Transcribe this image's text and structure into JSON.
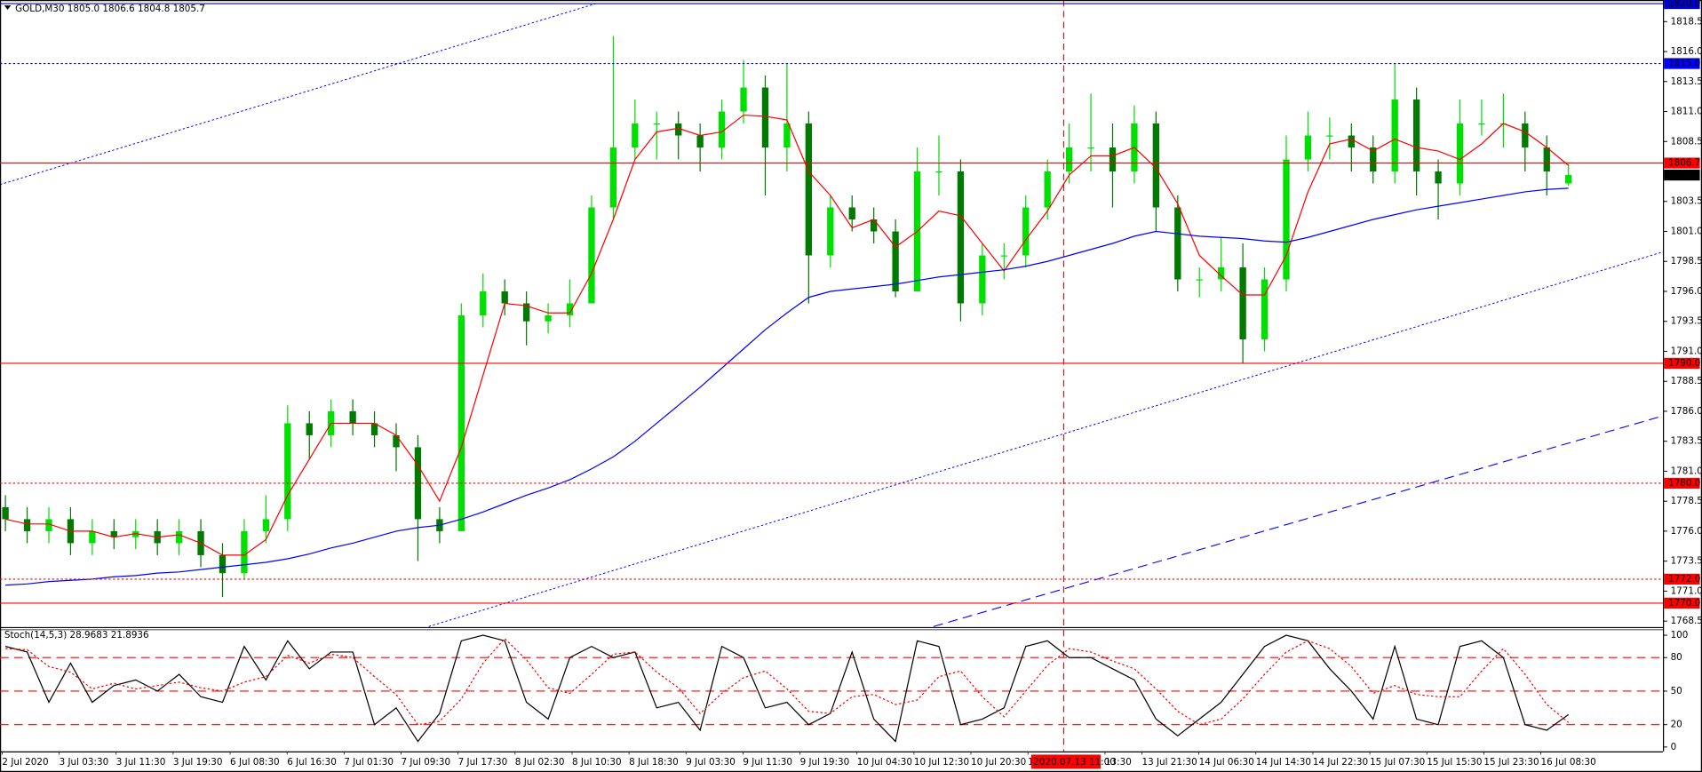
{
  "chart_data": [
    {
      "type": "candlestick",
      "title": "GOLD,M30  1805.0 1806.6 1804.8 1805.7",
      "up_color": "#00e000",
      "down_color": "#007a00",
      "open": [
        1778,
        1777,
        1776,
        1777,
        1775,
        1776,
        1775.5,
        1776,
        1775,
        1776,
        1774,
        1772.5,
        1776,
        1777,
        1785,
        1784,
        1786,
        1785,
        1784,
        1783,
        1777,
        1776,
        1794,
        1796,
        1795,
        1793.5,
        1794,
        1795,
        1803,
        1808,
        1810,
        1810,
        1809,
        1808,
        1811,
        1813,
        1808,
        1810,
        1799,
        1803,
        1802,
        1801,
        1796,
        1806,
        1806,
        1795,
        1799,
        1799,
        1803,
        1806,
        1808,
        1808,
        1806,
        1810,
        1803,
        1797,
        1797,
        1798,
        1792,
        1797,
        1807,
        1809,
        1809,
        1808,
        1806,
        1812,
        1806,
        1805,
        1810,
        1810,
        1810,
        1808,
        1805
      ],
      "high": [
        1779,
        1778,
        1778,
        1778,
        1777,
        1777,
        1777,
        1777,
        1777,
        1777,
        1775,
        1777,
        1779,
        1786.5,
        1786,
        1787,
        1787,
        1786,
        1785,
        1784,
        1778,
        1795,
        1797.5,
        1797,
        1796,
        1795,
        1797,
        1804,
        1817.3,
        1812,
        1811,
        1811,
        1810,
        1812,
        1815.3,
        1814,
        1815,
        1811,
        1804,
        1804,
        1803,
        1802,
        1808,
        1809,
        1807,
        1800,
        1800,
        1804,
        1807,
        1810,
        1812.5,
        1810,
        1811.5,
        1811,
        1804,
        1798,
        1800.5,
        1800,
        1798,
        1809,
        1811,
        1810.5,
        1810,
        1809,
        1815,
        1813,
        1807,
        1812,
        1812,
        1812.5,
        1811,
        1809,
        1806.6
      ],
      "low": [
        1776,
        1775,
        1775,
        1774,
        1774,
        1774.5,
        1774.5,
        1774,
        1774,
        1773,
        1770.5,
        1772,
        1775,
        1776,
        1782,
        1783,
        1784,
        1783,
        1781,
        1773.5,
        1775,
        1776,
        1793,
        1794,
        1791.5,
        1792.5,
        1793,
        1795,
        1802,
        1807,
        1807,
        1807,
        1806,
        1807,
        1810,
        1804,
        1806,
        1795,
        1798,
        1801,
        1800,
        1795.5,
        1796,
        1804,
        1793.5,
        1794,
        1797,
        1798,
        1802,
        1805,
        1806,
        1803,
        1805,
        1801,
        1796,
        1795.5,
        1796,
        1790,
        1791,
        1796,
        1806,
        1807,
        1806,
        1805,
        1805,
        1804,
        1802,
        1804,
        1809,
        1808,
        1806,
        1804,
        1804.8
      ],
      "close": [
        1777,
        1776,
        1777,
        1775,
        1776,
        1775.5,
        1776,
        1775,
        1776,
        1774,
        1772.5,
        1776,
        1777,
        1785,
        1784,
        1786,
        1785,
        1784,
        1783,
        1777,
        1776,
        1794,
        1796,
        1795,
        1793.5,
        1794,
        1795,
        1803,
        1808,
        1810,
        1810,
        1809,
        1808,
        1811,
        1813,
        1808,
        1810,
        1799,
        1803,
        1802,
        1801,
        1796,
        1806,
        1806,
        1795,
        1799,
        1799,
        1803,
        1806,
        1808,
        1808,
        1806,
        1810,
        1803,
        1797,
        1797,
        1798,
        1792,
        1797,
        1807,
        1809,
        1809,
        1808,
        1806,
        1812,
        1806,
        1805,
        1810,
        1810,
        1810,
        1808,
        1806,
        1805.7
      ],
      "lines": [
        {
          "color": "#ff0000",
          "values": [
            1777,
            1776.6,
            1776.6,
            1776,
            1776,
            1775.5,
            1775.8,
            1775.5,
            1775.7,
            1775,
            1774,
            1774,
            1775.3,
            1779,
            1782,
            1785,
            1785,
            1785,
            1784,
            1781.5,
            1778.5,
            1783,
            1789,
            1795,
            1794.8,
            1794.2,
            1794.2,
            1797.5,
            1802,
            1807,
            1809.3,
            1809.6,
            1809,
            1809.3,
            1810.7,
            1810.6,
            1810.3,
            1806,
            1804,
            1801.3,
            1802,
            1799.7,
            1801,
            1802.7,
            1802.3,
            1800,
            1797.7,
            1800.3,
            1802.7,
            1805.7,
            1807.3,
            1807.3,
            1808,
            1806.3,
            1803.3,
            1799,
            1797.3,
            1795.7,
            1795.7,
            1799,
            1804.3,
            1808.3,
            1808.7,
            1807.7,
            1808.7,
            1808,
            1807.7,
            1807,
            1808.3,
            1810,
            1809.3,
            1808,
            1806.5
          ]
        },
        {
          "color": "#0000ff",
          "values": [
            1771.5,
            1771.6,
            1771.8,
            1771.9,
            1772,
            1772.2,
            1772.3,
            1772.5,
            1772.6,
            1772.8,
            1773,
            1773.2,
            1773.4,
            1773.7,
            1774.1,
            1774.6,
            1775,
            1775.5,
            1776,
            1776.3,
            1776.5,
            1777,
            1777.6,
            1778.3,
            1779,
            1779.6,
            1780.3,
            1781.2,
            1782.2,
            1783.5,
            1785,
            1786.5,
            1788,
            1789.6,
            1791.2,
            1792.8,
            1794.2,
            1795.5,
            1796,
            1796.2,
            1796.4,
            1796.6,
            1796.9,
            1797.2,
            1797.4,
            1797.6,
            1797.8,
            1798.1,
            1798.5,
            1799,
            1799.5,
            1800,
            1800.6,
            1801,
            1800.8,
            1800.6,
            1800.5,
            1800.4,
            1800.2,
            1800.1,
            1800.5,
            1801,
            1801.5,
            1802,
            1802.4,
            1802.8,
            1803.1,
            1803.4,
            1803.7,
            1804,
            1804.3,
            1804.5,
            1804.6
          ]
        }
      ],
      "ylim": [
        1768.05,
        1820.3
      ],
      "yticks": [
        {
          "value": 1818.5,
          "label": "1818.5"
        },
        {
          "value": 1816,
          "label": "1816.0"
        },
        {
          "value": 1813.5,
          "label": "1813.5"
        },
        {
          "value": 1811,
          "label": "1811.0"
        },
        {
          "value": 1808.5,
          "label": "1808.5"
        },
        {
          "value": 1803.5,
          "label": "1803.5"
        },
        {
          "value": 1801,
          "label": "1801.0"
        },
        {
          "value": 1798.5,
          "label": "1798.5"
        },
        {
          "value": 1796,
          "label": "1796.0"
        },
        {
          "value": 1793.5,
          "label": "1793.5"
        },
        {
          "value": 1791,
          "label": "1791.0"
        },
        {
          "value": 1788.5,
          "label": "1788.5"
        },
        {
          "value": 1786,
          "label": "1786.0"
        },
        {
          "value": 1783.5,
          "label": "1783.5"
        },
        {
          "value": 1781,
          "label": "1781.0"
        },
        {
          "value": 1778.5,
          "label": "1778.5"
        },
        {
          "value": 1776,
          "label": "1776.0"
        },
        {
          "value": 1773.5,
          "label": "1773.5"
        },
        {
          "value": 1771,
          "label": "1771.0"
        },
        {
          "value": 1768.5,
          "label": "1768.5"
        }
      ],
      "levels": [
        {
          "value": 1820,
          "label": "1820.0",
          "color": "#0000cc",
          "style": "solid"
        },
        {
          "value": 1815,
          "label": "1815.0",
          "color": "#0000ff",
          "style": "dotted"
        },
        {
          "value": 1806.7,
          "label": "1806.7",
          "color": "#ff0000",
          "style": "solid"
        },
        {
          "value": 1790,
          "label": "1790.0",
          "color": "#ff0000",
          "style": "solid"
        },
        {
          "value": 1780,
          "label": "1780.0",
          "color": "#ff0000",
          "style": "dotted"
        },
        {
          "value": 1772,
          "label": "1772.0",
          "color": "#ff0000",
          "style": "dotted"
        },
        {
          "value": 1770,
          "label": "1770.0",
          "color": "#ff0000",
          "style": "solid"
        }
      ],
      "last": {
        "value": 1805.7,
        "label": "1805.7"
      },
      "x_labels": [
        "2 Jul 2020",
        "3 Jul 03:30",
        "3 Jul 11:30",
        "3 Jul 19:30",
        "6 Jul 08:30",
        "6 Jul 16:30",
        "7 Jul 01:30",
        "7 Jul 09:30",
        "7 Jul 17:30",
        "8 Jul 02:30",
        "8 Jul 10:30",
        "8 Jul 18:30",
        "9 Jul 03:30",
        "9 Jul 11:30",
        "9 Jul 19:30",
        "10 Jul 04:30",
        "10 Jul 12:30",
        "10 Jul 20:30",
        "1",
        "13:30",
        "13 Jul 21:30",
        "14 Jul 06:30",
        "14 Jul 14:30",
        "14 Jul 22:30",
        "15 Jul 07:30",
        "15 Jul 15:30",
        "15 Jul 23:30",
        "16 Jul 08:30"
      ],
      "crosshair_label": "2020.07.13 11:00"
    },
    {
      "type": "stochastic",
      "title": "Stoch(14,5,3) 28.9683 21.8936",
      "series": [
        {
          "color": "#000000",
          "style": "solid",
          "values": [
            90,
            85,
            40,
            75,
            40,
            55,
            60,
            50,
            65,
            45,
            40,
            90,
            60,
            95,
            70,
            85,
            85,
            20,
            35,
            5,
            30,
            95,
            100,
            95,
            40,
            25,
            80,
            90,
            80,
            85,
            35,
            40,
            15,
            90,
            80,
            35,
            40,
            20,
            30,
            85,
            25,
            5,
            95,
            90,
            20,
            25,
            35,
            90,
            95,
            80,
            80,
            70,
            60,
            25,
            10,
            25,
            40,
            65,
            90,
            100,
            95,
            70,
            50,
            25,
            90,
            25,
            20,
            90,
            95,
            80,
            20,
            15,
            28.9683
          ]
        },
        {
          "color": "#ff0000",
          "style": "dotted",
          "values": [
            88,
            87,
            72,
            67,
            52,
            57,
            52,
            55,
            58,
            53,
            50,
            58,
            63,
            82,
            75,
            83,
            80,
            63,
            47,
            20,
            23,
            43,
            75,
            97,
            78,
            53,
            48,
            65,
            83,
            85,
            67,
            53,
            30,
            48,
            62,
            68,
            52,
            32,
            30,
            45,
            47,
            38,
            42,
            63,
            68,
            45,
            27,
            50,
            73,
            88,
            85,
            77,
            70,
            52,
            32,
            20,
            25,
            43,
            65,
            85,
            95,
            88,
            72,
            48,
            55,
            47,
            45,
            45,
            68,
            88,
            65,
            38,
            21.8936
          ]
        }
      ],
      "levels": [
        80,
        50,
        20
      ],
      "ylim": [
        -3.9,
        104.9
      ],
      "yticks": [
        100,
        80,
        50,
        20,
        0
      ]
    }
  ]
}
